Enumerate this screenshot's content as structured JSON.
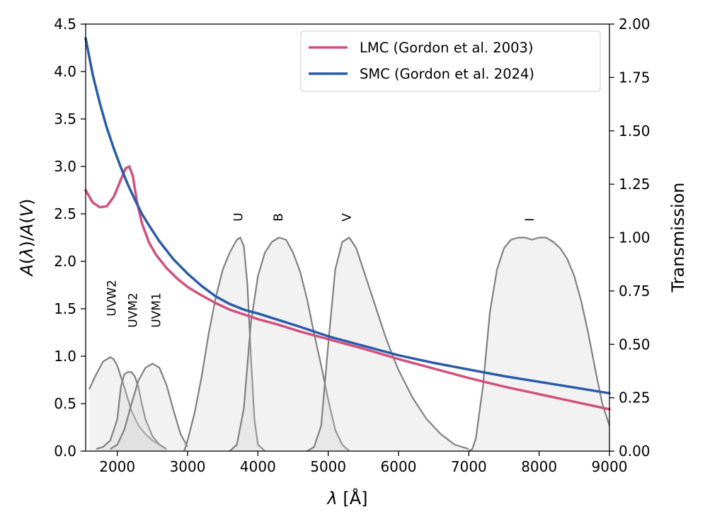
{
  "chart_data": {
    "type": "line",
    "xlabel": "λ [Å]",
    "ylabel": "A(λ)/A(V)",
    "y2label": "Transmission",
    "xlim": [
      1550,
      9000
    ],
    "ylim": [
      0,
      4.5
    ],
    "y2lim": [
      0,
      2.0
    ],
    "x_ticks": [
      2000,
      3000,
      4000,
      5000,
      6000,
      7000,
      8000,
      9000
    ],
    "y_ticks": [
      0.0,
      0.5,
      1.0,
      1.5,
      2.0,
      2.5,
      3.0,
      3.5,
      4.0,
      4.5
    ],
    "y2_ticks": [
      0.0,
      0.25,
      0.5,
      0.75,
      1.0,
      1.25,
      1.5,
      1.75,
      2.0
    ],
    "legend_position": "top-right",
    "series": [
      {
        "name": "LMC (Gordon et al. 2003)",
        "color": "#d1517e",
        "x": [
          1550,
          1650,
          1750,
          1850,
          1950,
          2050,
          2120,
          2170,
          2220,
          2280,
          2350,
          2450,
          2550,
          2700,
          2850,
          3000,
          3200,
          3400,
          3600,
          3800,
          4000,
          4300,
          4600,
          5000,
          5500,
          6000,
          6500,
          7000,
          7500,
          8000,
          8500,
          9000
        ],
        "values": [
          2.75,
          2.62,
          2.57,
          2.58,
          2.68,
          2.86,
          2.98,
          3.0,
          2.9,
          2.63,
          2.4,
          2.2,
          2.07,
          1.93,
          1.82,
          1.73,
          1.64,
          1.56,
          1.49,
          1.44,
          1.39,
          1.33,
          1.26,
          1.18,
          1.08,
          0.97,
          0.87,
          0.77,
          0.68,
          0.6,
          0.52,
          0.44
        ]
      },
      {
        "name": "SMC (Gordon et al. 2024)",
        "color": "#2a5ba9",
        "x": [
          1550,
          1650,
          1750,
          1850,
          1950,
          2050,
          2150,
          2250,
          2350,
          2450,
          2600,
          2800,
          3000,
          3200,
          3400,
          3600,
          3800,
          4000,
          4300,
          4600,
          5000,
          5500,
          6000,
          6500,
          7000,
          7500,
          8000,
          8500,
          9000
        ],
        "values": [
          4.35,
          3.97,
          3.67,
          3.41,
          3.19,
          2.99,
          2.81,
          2.65,
          2.5,
          2.38,
          2.21,
          2.02,
          1.87,
          1.74,
          1.63,
          1.55,
          1.49,
          1.45,
          1.38,
          1.31,
          1.21,
          1.11,
          1.01,
          0.93,
          0.86,
          0.79,
          0.73,
          0.67,
          0.61
        ]
      }
    ],
    "filters": [
      {
        "name": "UVW2",
        "x": [
          1600,
          1700,
          1800,
          1900,
          1950,
          2000,
          2100,
          2200,
          2300,
          2400,
          2500,
          2600,
          2700
        ],
        "values": [
          0.29,
          0.36,
          0.42,
          0.44,
          0.43,
          0.4,
          0.3,
          0.19,
          0.12,
          0.08,
          0.05,
          0.03,
          0.01
        ]
      },
      {
        "name": "UVM2",
        "x": [
          1700,
          1800,
          1900,
          2000,
          2050,
          2100,
          2150,
          2200,
          2250,
          2300,
          2350,
          2400,
          2500,
          2600,
          2700
        ],
        "values": [
          0.01,
          0.02,
          0.05,
          0.15,
          0.3,
          0.36,
          0.37,
          0.37,
          0.35,
          0.3,
          0.22,
          0.15,
          0.07,
          0.03,
          0.01
        ]
      },
      {
        "name": "UVM1",
        "x": [
          1900,
          2000,
          2100,
          2200,
          2300,
          2400,
          2500,
          2600,
          2700,
          2800,
          2900,
          3000
        ],
        "values": [
          0.01,
          0.03,
          0.1,
          0.22,
          0.33,
          0.39,
          0.41,
          0.39,
          0.31,
          0.19,
          0.08,
          0.02
        ]
      },
      {
        "name": "U",
        "x": [
          2950,
          3000,
          3100,
          3200,
          3300,
          3400,
          3500,
          3600,
          3700,
          3750,
          3800,
          3850,
          3900,
          3950,
          4000,
          4100
        ],
        "values": [
          0.0,
          0.05,
          0.18,
          0.35,
          0.55,
          0.72,
          0.85,
          0.93,
          0.99,
          1.0,
          0.96,
          0.78,
          0.45,
          0.15,
          0.03,
          0.0
        ]
      },
      {
        "name": "B",
        "x": [
          3600,
          3700,
          3800,
          3900,
          4000,
          4100,
          4200,
          4300,
          4400,
          4500,
          4600,
          4700,
          4800,
          4900,
          5000,
          5100,
          5200,
          5300
        ],
        "values": [
          0.0,
          0.03,
          0.2,
          0.6,
          0.82,
          0.93,
          0.98,
          1.0,
          0.99,
          0.93,
          0.84,
          0.71,
          0.55,
          0.4,
          0.24,
          0.1,
          0.03,
          0.0
        ]
      },
      {
        "name": "V",
        "x": [
          4700,
          4800,
          4900,
          5000,
          5100,
          5200,
          5300,
          5400,
          5500,
          5600,
          5700,
          5800,
          5900,
          6000,
          6200,
          6400,
          6600,
          6800,
          7000
        ],
        "values": [
          0.0,
          0.02,
          0.12,
          0.5,
          0.85,
          0.98,
          1.0,
          0.95,
          0.85,
          0.75,
          0.65,
          0.55,
          0.46,
          0.38,
          0.25,
          0.15,
          0.08,
          0.03,
          0.01
        ]
      },
      {
        "name": "I",
        "x": [
          7000,
          7050,
          7100,
          7200,
          7300,
          7400,
          7500,
          7600,
          7700,
          7800,
          7900,
          8000,
          8100,
          8200,
          8300,
          8400,
          8500,
          8600,
          8700,
          8800,
          8900,
          9000
        ],
        "values": [
          0.0,
          0.01,
          0.06,
          0.3,
          0.65,
          0.85,
          0.95,
          0.99,
          1.0,
          1.0,
          0.99,
          1.0,
          1.0,
          0.98,
          0.95,
          0.9,
          0.82,
          0.7,
          0.55,
          0.38,
          0.22,
          0.12
        ]
      }
    ]
  }
}
